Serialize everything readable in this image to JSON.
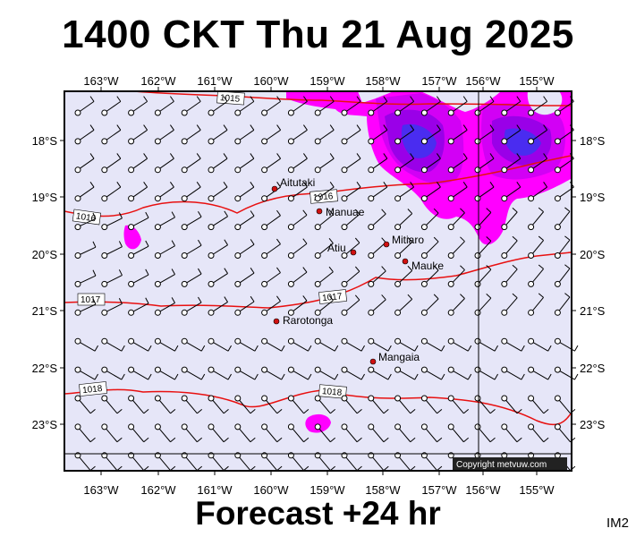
{
  "title": "1400 CKT Thu 21 Aug 2025",
  "footer": "Forecast +24 hr",
  "model_code": "IM2",
  "copyright": "Copyright metvuw.com",
  "longitude_labels": [
    "163°W",
    "162°W",
    "161°W",
    "160°W",
    "159°W",
    "158°W",
    "157°W",
    "156°W",
    "155°W"
  ],
  "latitude_labels": [
    "18°S",
    "19°S",
    "20°S",
    "21°S",
    "22°S",
    "23°S"
  ],
  "places": [
    {
      "name": "Aitutaki",
      "lon": -159.78,
      "lat": -18.86
    },
    {
      "name": "Manuae",
      "lon": -158.96,
      "lat": -19.26
    },
    {
      "name": "Mitiaro",
      "lon": -157.71,
      "lat": -19.86
    },
    {
      "name": "Atiu",
      "lon": -158.11,
      "lat": -20.0
    },
    {
      "name": "Mauke",
      "lon": -157.34,
      "lat": -20.15
    },
    {
      "name": "Rarotonga",
      "lon": -159.78,
      "lat": -21.23
    },
    {
      "name": "Mangaia",
      "lon": -157.93,
      "lat": -21.93
    }
  ],
  "isobar_labels": [
    "1015",
    "1016",
    "1016",
    "1017",
    "1017",
    "1018",
    "1018"
  ],
  "colors": {
    "ocean": "#e6e6f8",
    "isobar": "#e81010",
    "precip_light": "#ff00ff",
    "precip_mid": "#b000f0",
    "precip_heavy": "#2020ff"
  }
}
